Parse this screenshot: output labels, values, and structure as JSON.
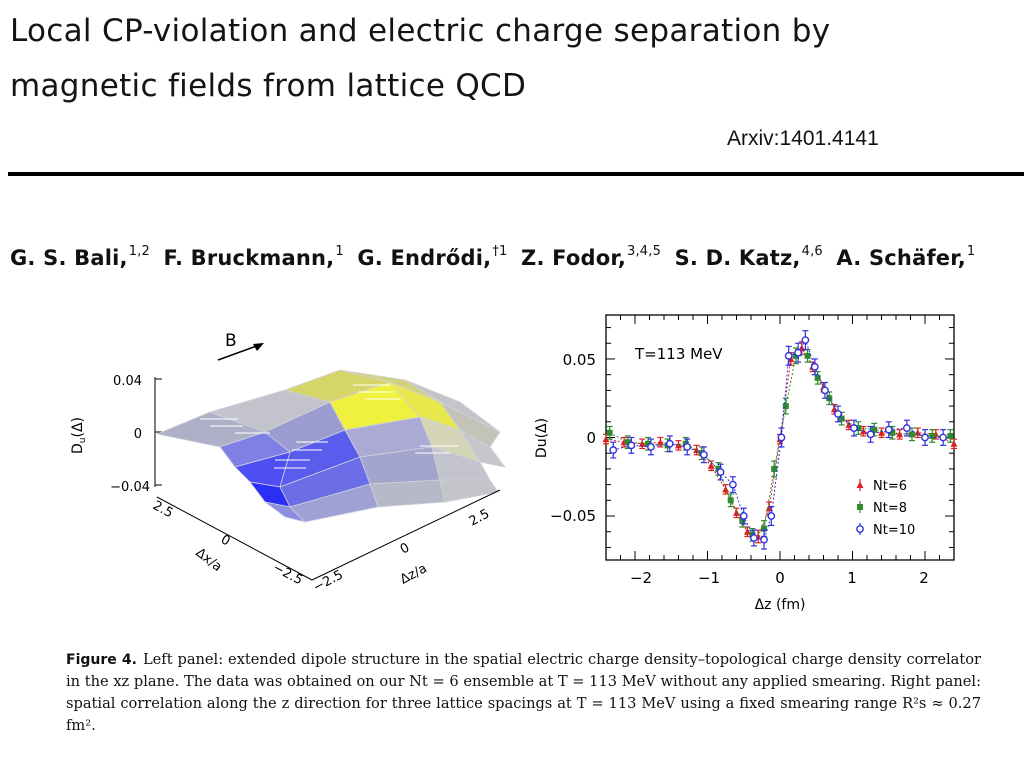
{
  "slide": {
    "title_line1": "Local CP-violation and electric charge separation by",
    "title_line2": "magnetic fields from lattice QCD",
    "arxiv": "Arxiv:1401.4141"
  },
  "authors": [
    {
      "name": "G. S. Bali,",
      "sup": "1,2"
    },
    {
      "name": "F. Bruckmann,",
      "sup": "1"
    },
    {
      "name": "G. Endrődi,",
      "sup": "†1"
    },
    {
      "name": "Z. Fodor,",
      "sup": "3,4,5"
    },
    {
      "name": "S. D. Katz,",
      "sup": "4,6"
    },
    {
      "name": "A. Schäfer,",
      "sup": "1"
    }
  ],
  "left_panel": {
    "b_label": "B",
    "z_axis_label": "D",
    "z_axis_sub": "u",
    "z_axis_paren": "(Δ)",
    "z_ticks": [
      "0.04",
      "0",
      "−0.04"
    ],
    "x_axis_label": "Δx/a",
    "x_ticks": [
      "2.5",
      "0",
      "−2.5"
    ],
    "z2_axis_label": "Δz/a",
    "z2_ticks": [
      "−2.5",
      "0",
      "2.5"
    ],
    "colors": {
      "negative": "#2f2ff5",
      "positive": "#f2f23a",
      "neutral": "#b9bbc4"
    }
  },
  "chart_data": {
    "type": "scatter",
    "annotation": "T=113 MeV",
    "xlabel": "Δz (fm)",
    "ylabel": "Du(Δ)",
    "xlim": [
      -2.4,
      2.4
    ],
    "ylim": [
      -0.078,
      0.078
    ],
    "x_ticks": [
      "−2",
      "−1",
      "0",
      "1",
      "2"
    ],
    "y_ticks": [
      "0.05",
      "0",
      "−0.05"
    ],
    "series": [
      {
        "name": "Nt=6",
        "color": "#e02020",
        "marker": "triangle",
        "x": [
          -2.4,
          -2.15,
          -1.9,
          -1.65,
          -1.4,
          -1.15,
          -0.95,
          -0.75,
          -0.6,
          -0.45,
          -0.3,
          -0.15,
          0,
          0.15,
          0.3,
          0.45,
          0.6,
          0.75,
          0.95,
          1.15,
          1.4,
          1.65,
          1.9,
          2.15,
          2.4
        ],
        "y": [
          -0.001,
          -0.003,
          -0.004,
          -0.003,
          -0.005,
          -0.008,
          -0.018,
          -0.033,
          -0.048,
          -0.06,
          -0.063,
          -0.045,
          -0.001,
          0.05,
          0.057,
          0.045,
          0.032,
          0.018,
          0.008,
          0.004,
          0.003,
          0.002,
          0.003,
          0.002,
          -0.004
        ],
        "err": [
          0.003,
          0.003,
          0.003,
          0.003,
          0.003,
          0.003,
          0.003,
          0.003,
          0.003,
          0.003,
          0.004,
          0.004,
          0.003,
          0.004,
          0.004,
          0.003,
          0.003,
          0.003,
          0.003,
          0.003,
          0.003,
          0.003,
          0.003,
          0.003,
          0.003
        ]
      },
      {
        "name": "Nt=8",
        "color": "#2e8b2e",
        "marker": "square",
        "x": [
          -2.35,
          -2.1,
          -1.82,
          -1.55,
          -1.3,
          -1.08,
          -0.85,
          -0.68,
          -0.52,
          -0.38,
          -0.22,
          -0.08,
          0.08,
          0.22,
          0.38,
          0.52,
          0.68,
          0.85,
          1.08,
          1.3,
          1.55,
          1.82,
          2.1,
          2.35
        ],
        "y": [
          0.003,
          -0.003,
          -0.004,
          -0.005,
          -0.004,
          -0.01,
          -0.02,
          -0.04,
          -0.053,
          -0.062,
          -0.058,
          -0.02,
          0.02,
          0.052,
          0.052,
          0.038,
          0.025,
          0.012,
          0.006,
          0.005,
          0.003,
          0.002,
          0.001,
          0.001
        ],
        "err": [
          0.004,
          0.004,
          0.004,
          0.004,
          0.004,
          0.004,
          0.004,
          0.004,
          0.004,
          0.004,
          0.005,
          0.005,
          0.005,
          0.005,
          0.004,
          0.004,
          0.004,
          0.004,
          0.004,
          0.004,
          0.004,
          0.004,
          0.004,
          0.004
        ]
      },
      {
        "name": "Nt=10",
        "color": "#3030e0",
        "marker": "circle",
        "x": [
          -2.3,
          -2.05,
          -1.78,
          -1.52,
          -1.28,
          -1.05,
          -0.82,
          -0.65,
          -0.5,
          -0.36,
          -0.22,
          -0.12,
          0.02,
          0.12,
          0.25,
          0.35,
          0.48,
          0.62,
          0.8,
          1.02,
          1.25,
          1.5,
          1.75,
          2.0,
          2.25
        ],
        "y": [
          -0.008,
          -0.005,
          -0.006,
          -0.004,
          -0.006,
          -0.011,
          -0.022,
          -0.03,
          -0.05,
          -0.064,
          -0.065,
          -0.05,
          0.0,
          0.052,
          0.054,
          0.062,
          0.045,
          0.03,
          0.015,
          0.006,
          0.002,
          0.005,
          0.006,
          0.0,
          0.0
        ],
        "err": [
          0.005,
          0.005,
          0.005,
          0.005,
          0.005,
          0.005,
          0.005,
          0.005,
          0.005,
          0.005,
          0.006,
          0.006,
          0.006,
          0.006,
          0.006,
          0.006,
          0.005,
          0.005,
          0.005,
          0.005,
          0.005,
          0.005,
          0.005,
          0.005,
          0.005
        ]
      }
    ],
    "legend": [
      "Nt=6",
      "Nt=8",
      "Nt=10"
    ],
    "legend_position": "bottom-right"
  },
  "caption": {
    "label": "Figure 4.",
    "text": "Left panel: extended dipole structure in the spatial electric charge density–topological charge density correlator in the xz plane. The data was obtained on our Nt = 6 ensemble at T = 113 MeV without any applied smearing. Right panel: spatial correlation along the z direction for three lattice spacings at T = 113 MeV using a fixed smearing range R²s ≈ 0.27 fm²."
  }
}
